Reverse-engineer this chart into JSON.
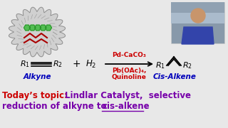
{
  "bg_color": "#e8e8e8",
  "reagent_top": "Pd-CaCO₃",
  "reagent_bottom": "Pb(OAc)₄,",
  "reagent_bottom2": "Quinoline",
  "reagent_color": "#cc0000",
  "label_alkyne": "Alkyne",
  "label_cis_alkene": "Cis-Alkene",
  "label_color_blue": "#0000bb",
  "text_red": "#cc0000",
  "text_purple": "#7700aa"
}
